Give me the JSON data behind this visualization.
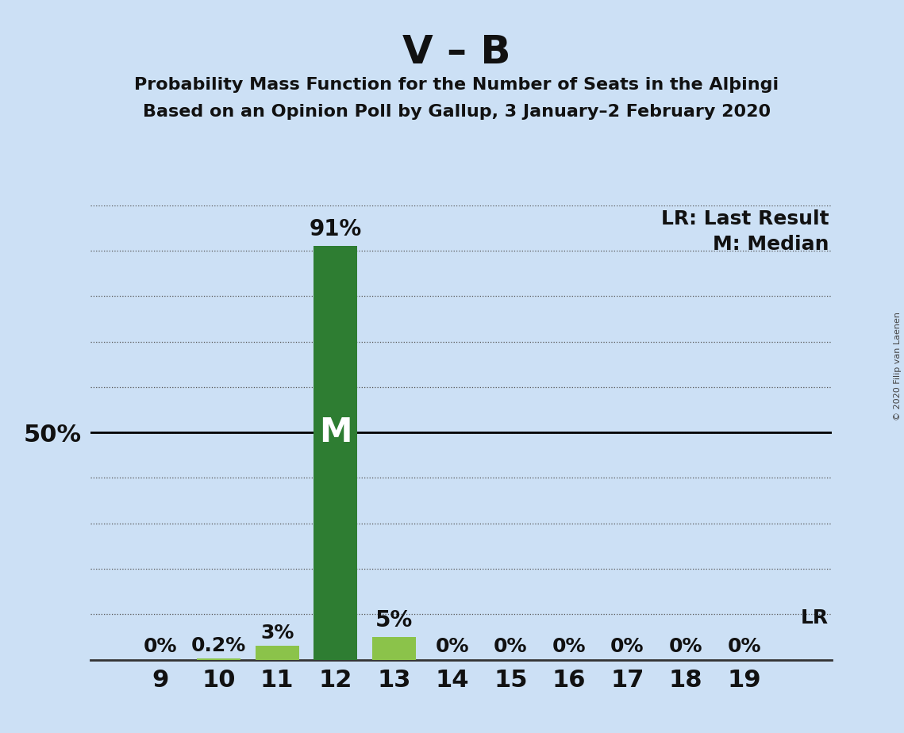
{
  "title": "V – B",
  "subtitle1": "Probability Mass Function for the Number of Seats in the Alþingi",
  "subtitle2": "Based on an Opinion Poll by Gallup, 3 January–2 February 2020",
  "seats": [
    9,
    10,
    11,
    12,
    13,
    14,
    15,
    16,
    17,
    18,
    19
  ],
  "probabilities": [
    0.0,
    0.002,
    0.03,
    0.91,
    0.05,
    0.0,
    0.0,
    0.0,
    0.0,
    0.0,
    0.0
  ],
  "bar_labels": [
    "0%",
    "0.2%",
    "3%",
    "91%",
    "5%",
    "0%",
    "0%",
    "0%",
    "0%",
    "0%",
    "0%"
  ],
  "median_seat": 12,
  "last_result_seat": 12,
  "median_bar_color": "#2e7d32",
  "normal_bar_color": "#8bc34a",
  "background_color": "#cce0f5",
  "y_label_50": "50%",
  "ylim_max": 1.0,
  "ytick_values": [
    0.0,
    0.1,
    0.2,
    0.3,
    0.4,
    0.5,
    0.6,
    0.7,
    0.8,
    0.9,
    1.0
  ],
  "copyright_text": "© 2020 Filip van Laenen",
  "lr_legend": "LR: Last Result",
  "m_legend": "M: Median",
  "lr_text": "LR",
  "bar_label_fontsize": 18,
  "tick_fontsize": 22,
  "legend_fontsize": 18,
  "title_fontsize": 36,
  "subtitle_fontsize": 16,
  "xlim_left": 7.8,
  "xlim_right": 20.5,
  "bar_width": 0.75
}
